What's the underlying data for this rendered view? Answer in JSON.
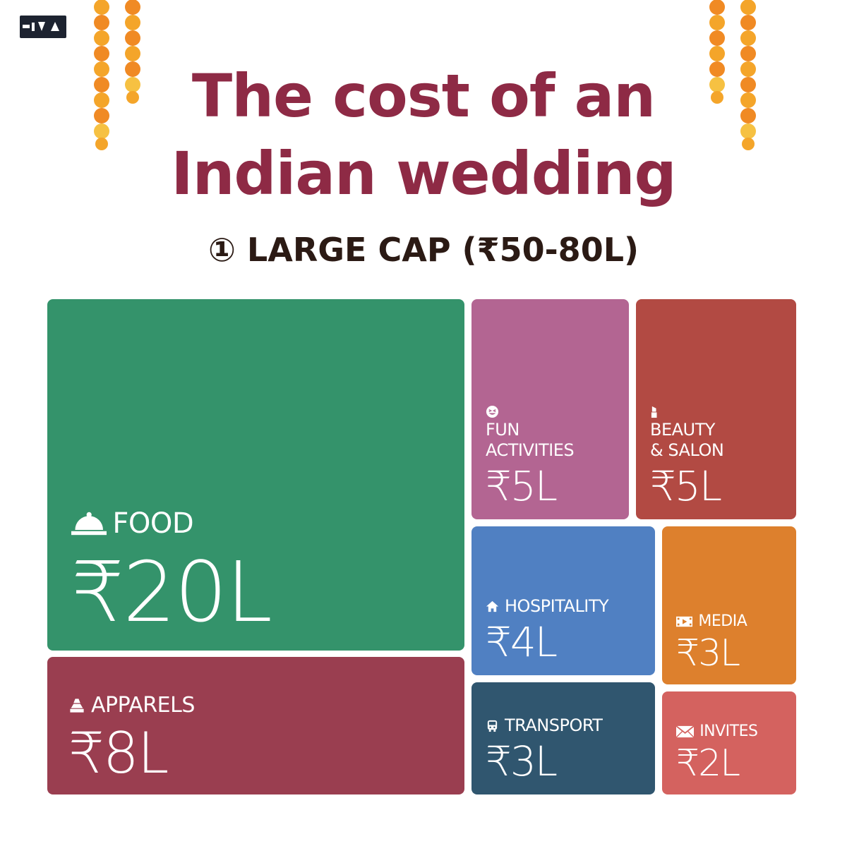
{
  "header": {
    "title_line1": "The cost of an",
    "title_line2": "Indian wedding",
    "subtitle": "① LARGE CAP (₹50-80L)"
  },
  "logo": {
    "icon": "brand-logo-icon"
  },
  "colors": {
    "title": "#8e2a45",
    "food": "#34936b",
    "apparels": "#9a3e50",
    "fun": "#b36592",
    "beauty": "#b24a43",
    "hospitality": "#5080c2",
    "media": "#dd802d",
    "transport": "#30566f",
    "invites": "#d4625f"
  },
  "chart_data": {
    "type": "treemap",
    "unit": "₹ Lakh",
    "items": [
      {
        "key": "food",
        "label": "FOOD",
        "display": "₹20L",
        "value": 20,
        "icon": "food-cloche-icon",
        "color": "#34936b"
      },
      {
        "key": "apparels",
        "label": "APPARELS",
        "display": "₹8L",
        "value": 8,
        "icon": "fabric-icon",
        "color": "#9a3e50"
      },
      {
        "key": "fun",
        "label": "FUN\nACTIVITIES",
        "display": "₹5L",
        "value": 5,
        "icon": "laughing-face-icon",
        "color": "#b36592"
      },
      {
        "key": "beauty",
        "label": "BEAUTY\n& SALON",
        "display": "₹5L",
        "value": 5,
        "icon": "lipstick-icon",
        "color": "#b24a43"
      },
      {
        "key": "hospitality",
        "label": "HOSPITALITY",
        "display": "₹4L",
        "value": 4,
        "icon": "house-icon",
        "color": "#5080c2"
      },
      {
        "key": "media",
        "label": "MEDIA",
        "display": "₹3L",
        "value": 3,
        "icon": "film-icon",
        "color": "#dd802d"
      },
      {
        "key": "transport",
        "label": "TRANSPORT",
        "display": "₹3L",
        "value": 3,
        "icon": "bus-icon",
        "color": "#30566f"
      },
      {
        "key": "invites",
        "label": "INVITES",
        "display": "₹2L",
        "value": 2,
        "icon": "envelope-icon",
        "color": "#d4625f"
      }
    ]
  }
}
